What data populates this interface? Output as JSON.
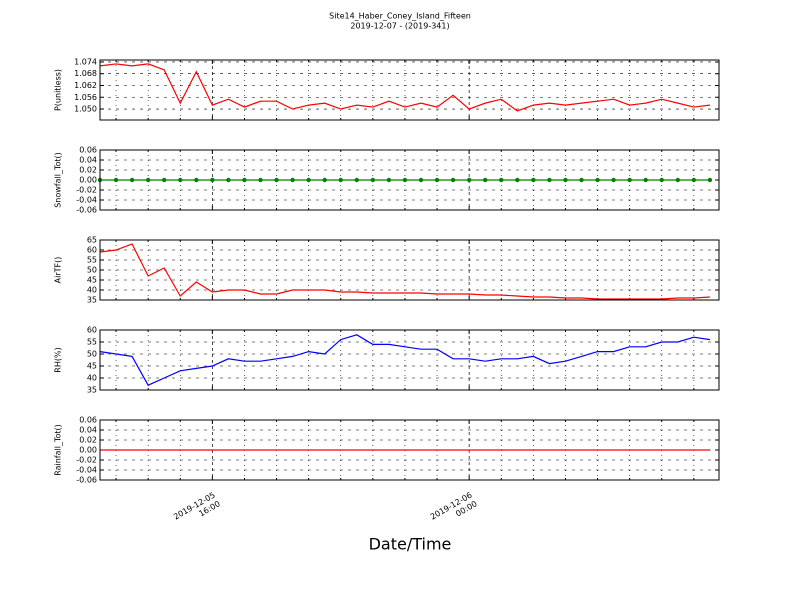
{
  "chart_data": {
    "type": "line",
    "title": "Site14_Haber_Coney_Island_Fifteen",
    "subtitle": "2019-12-07 - (2019-341)",
    "xlabel": "Date/Time",
    "x": [
      "2019-12-05 12:30",
      "2019-12-05 13:00",
      "2019-12-05 13:30",
      "2019-12-05 14:00",
      "2019-12-05 14:30",
      "2019-12-05 15:00",
      "2019-12-05 15:30",
      "2019-12-05 16:00",
      "2019-12-05 16:30",
      "2019-12-05 17:00",
      "2019-12-05 17:30",
      "2019-12-05 18:00",
      "2019-12-05 18:30",
      "2019-12-05 19:00",
      "2019-12-05 19:30",
      "2019-12-05 20:00",
      "2019-12-05 20:30",
      "2019-12-05 21:00",
      "2019-12-05 21:30",
      "2019-12-05 22:00",
      "2019-12-05 22:30",
      "2019-12-05 23:00",
      "2019-12-05 23:30",
      "2019-12-06 00:00",
      "2019-12-06 00:30",
      "2019-12-06 01:00",
      "2019-12-06 01:30",
      "2019-12-06 02:00",
      "2019-12-06 02:30",
      "2019-12-06 03:00",
      "2019-12-06 03:30",
      "2019-12-06 04:00",
      "2019-12-06 04:30",
      "2019-12-06 05:00",
      "2019-12-06 05:30",
      "2019-12-06 06:00",
      "2019-12-06 06:30",
      "2019-12-06 07:00",
      "2019-12-06 07:30"
    ],
    "xlim": [
      "2019-12-05 12:30",
      "2019-12-06 07:47"
    ],
    "xticks": [
      {
        "value": "2019-12-05 16:00",
        "label": "2019-12-05 16:00"
      },
      {
        "value": "2019-12-06 00:00",
        "label": "2019-12-06 00:00"
      }
    ],
    "x_minor_ticks": [
      "2019-12-05 13:00",
      "2019-12-05 14:00",
      "2019-12-05 15:00",
      "2019-12-05 17:00",
      "2019-12-05 18:00",
      "2019-12-05 19:00",
      "2019-12-05 20:00",
      "2019-12-05 21:00",
      "2019-12-05 22:00",
      "2019-12-05 23:00",
      "2019-12-06 01:00",
      "2019-12-06 02:00",
      "2019-12-06 03:00",
      "2019-12-06 04:00",
      "2019-12-06 05:00",
      "2019-12-06 06:00",
      "2019-12-06 07:00"
    ],
    "grid": true,
    "panels": [
      {
        "ylabel": "P(unitless)",
        "ylim": [
          1.0444,
          1.075
        ],
        "yticks": [
          {
            "value": 1.05,
            "label": "1.050"
          },
          1.056,
          1.062,
          1.068,
          1.074
        ],
        "series": [
          {
            "color": "#ff0000",
            "markers": false,
            "values": [
              1.072,
              1.073,
              1.072,
              1.073,
              1.07,
              1.053,
              1.069,
              1.052,
              1.055,
              1.051,
              1.054,
              1.054,
              1.05,
              1.052,
              1.053,
              1.05,
              1.052,
              1.051,
              1.054,
              1.051,
              1.053,
              1.051,
              1.057,
              1.05,
              1.053,
              1.055,
              1.049,
              1.052,
              1.053,
              1.052,
              1.053,
              1.054,
              1.055,
              1.052,
              1.053,
              1.055,
              1.053,
              1.051,
              1.052
            ]
          }
        ]
      },
      {
        "ylabel": "Snowfall_Tot()",
        "ylim": [
          -0.06,
          0.06
        ],
        "yticks": [
          -0.06,
          -0.04,
          -0.02,
          {
            "value": 0,
            "label": "0.00"
          },
          0.02,
          0.04,
          0.06
        ],
        "series": [
          {
            "color": "#008000",
            "markers": true,
            "values": [
              0,
              0,
              0,
              0,
              0,
              0,
              0,
              0,
              0,
              0,
              0,
              0,
              0,
              0,
              0,
              0,
              0,
              0,
              0,
              0,
              0,
              0,
              0,
              0,
              0,
              0,
              0,
              0,
              0,
              0,
              0,
              0,
              0,
              0,
              0,
              0,
              0,
              0,
              0
            ]
          }
        ]
      },
      {
        "ylabel": "AirTF()",
        "ylim": [
          35,
          65
        ],
        "yticks": [
          35,
          40,
          45,
          50,
          55,
          60,
          65
        ],
        "series": [
          {
            "color": "#ff0000",
            "markers": false,
            "values": [
              59,
              60,
              63,
              47,
              51,
              37,
              44,
              39,
              40,
              40,
              38,
              38,
              40,
              40,
              40,
              39,
              39,
              38.5,
              38.5,
              38.5,
              38.5,
              38,
              38,
              38,
              37.5,
              37.5,
              37,
              36.5,
              36.5,
              36,
              36,
              35.5,
              35.5,
              35.5,
              35.5,
              35.5,
              36,
              36,
              36.5
            ]
          }
        ]
      },
      {
        "ylabel": "RH(%)",
        "ylim": [
          35,
          60
        ],
        "yticks": [
          35,
          40,
          45,
          50,
          55,
          60
        ],
        "series": [
          {
            "color": "#0000ff",
            "markers": false,
            "values": [
              51,
              50,
              49,
              37,
              40,
              43,
              44,
              45,
              48,
              47,
              47,
              48,
              49,
              51,
              50,
              56,
              58,
              54,
              54,
              53,
              52,
              52,
              48,
              48,
              47,
              48,
              48,
              49,
              46,
              47,
              49,
              51,
              51,
              53,
              53,
              55,
              55,
              57,
              56
            ]
          }
        ]
      },
      {
        "ylabel": "Rainfall_Tot()",
        "ylim": [
          -0.06,
          0.06
        ],
        "yticks": [
          -0.06,
          -0.04,
          -0.02,
          {
            "value": 0,
            "label": "0.00"
          },
          0.02,
          0.04,
          0.06
        ],
        "series": [
          {
            "color": "#ff0000",
            "markers": false,
            "values": [
              0,
              0,
              0,
              0,
              0,
              0,
              0,
              0,
              0,
              0,
              0,
              0,
              0,
              0,
              0,
              0,
              0,
              0,
              0,
              0,
              0,
              0,
              0,
              0,
              0,
              0,
              0,
              0,
              0,
              0,
              0,
              0,
              0,
              0,
              0,
              0,
              0,
              0,
              0
            ]
          }
        ]
      }
    ]
  }
}
